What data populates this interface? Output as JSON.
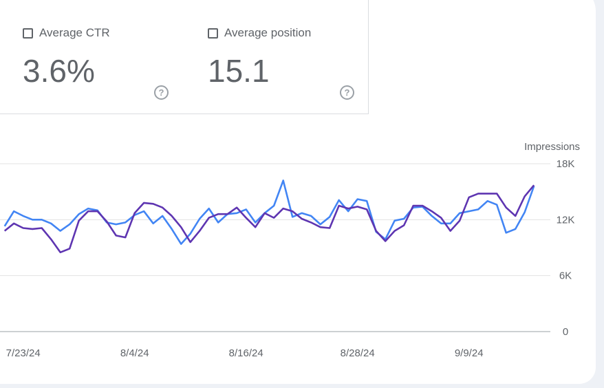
{
  "metrics": [
    {
      "label": "Average CTR",
      "value": "3.6%",
      "checked": false
    },
    {
      "label": "Average position",
      "value": "15.1",
      "checked": false
    }
  ],
  "chart_data": {
    "type": "line",
    "ylabel": "Impressions",
    "ylim": [
      0,
      18000
    ],
    "yticks": [
      "18K",
      "12K",
      "6K",
      "0"
    ],
    "ytick_values": [
      18000,
      12000,
      6000,
      0
    ],
    "xtick_labels": [
      "7/23/24",
      "8/4/24",
      "8/16/24",
      "8/28/24",
      "9/9/24"
    ],
    "xtick_index": [
      2,
      14,
      26,
      38,
      50
    ],
    "x_start": "7/21/24",
    "x_end": "9/16/24",
    "grid": true,
    "series": [
      {
        "color": "#5e35b1",
        "values": [
          10800,
          11600,
          11100,
          11000,
          11100,
          9900,
          8500,
          8900,
          11900,
          12900,
          12900,
          11800,
          10300,
          10100,
          12700,
          13800,
          13700,
          13300,
          12400,
          11200,
          9600,
          10800,
          12200,
          12600,
          12600,
          13300,
          12200,
          11200,
          12700,
          12200,
          13200,
          12900,
          12100,
          11700,
          11200,
          11100,
          13500,
          13200,
          13400,
          13100,
          10800,
          9700,
          10800,
          11400,
          13500,
          13500,
          12900,
          12200,
          10800,
          11900,
          14400,
          14800,
          14800,
          14800,
          13300,
          12400,
          14500,
          15700
        ]
      },
      {
        "color": "#4285f4",
        "values": [
          11300,
          12900,
          12400,
          12000,
          12000,
          11600,
          10800,
          11500,
          12600,
          13200,
          13000,
          11700,
          11500,
          11700,
          12500,
          12900,
          11600,
          12400,
          11000,
          9400,
          10500,
          12100,
          13200,
          11700,
          12600,
          12700,
          13100,
          11700,
          12700,
          13500,
          16200,
          12300,
          12700,
          12400,
          11500,
          12300,
          14100,
          12900,
          14200,
          14000,
          10700,
          9900,
          11900,
          12100,
          13300,
          13400,
          12400,
          11600,
          11600,
          12700,
          12900,
          13100,
          14000,
          13600,
          10600,
          11000,
          12800,
          15600
        ]
      }
    ]
  }
}
